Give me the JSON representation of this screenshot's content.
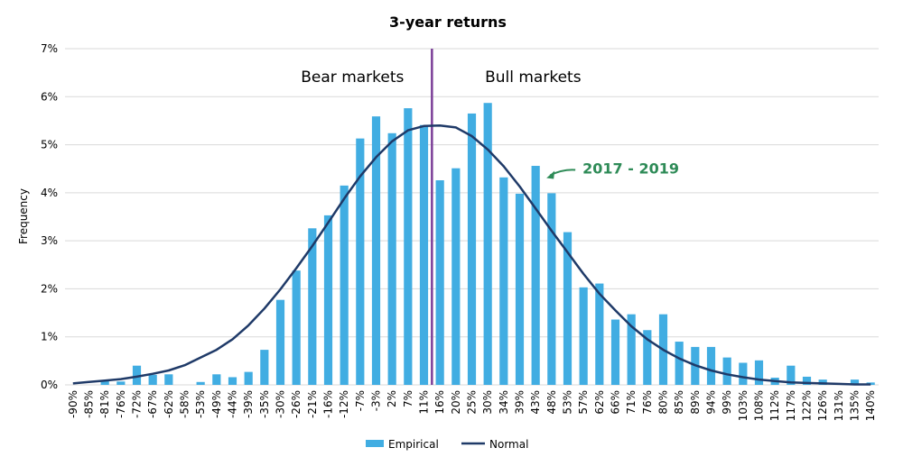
{
  "chart_data": {
    "type": "bar",
    "title": "3-year returns",
    "ylabel": "Frequency",
    "xlabel": "",
    "ylim": [
      0,
      7
    ],
    "yticks": [
      "0%",
      "1%",
      "2%",
      "3%",
      "4%",
      "5%",
      "6%",
      "7%"
    ],
    "grid": true,
    "legend_placement": "bottom",
    "categories": [
      "-90%",
      "-85%",
      "-81%",
      "-76%",
      "-72%",
      "-67%",
      "-62%",
      "-58%",
      "-53%",
      "-49%",
      "-44%",
      "-39%",
      "-35%",
      "-30%",
      "-26%",
      "-21%",
      "-16%",
      "-12%",
      "-7%",
      "-3%",
      "2%",
      "7%",
      "11%",
      "16%",
      "20%",
      "25%",
      "30%",
      "34%",
      "39%",
      "43%",
      "48%",
      "53%",
      "57%",
      "62%",
      "66%",
      "71%",
      "76%",
      "80%",
      "85%",
      "89%",
      "94%",
      "99%",
      "103%",
      "108%",
      "112%",
      "117%",
      "122%",
      "126%",
      "131%",
      "135%",
      "140%"
    ],
    "series": [
      {
        "name": "Empirical",
        "kind": "bar",
        "color": "#41ade2",
        "values": [
          0,
          0,
          0.08,
          0.07,
          0.4,
          0.21,
          0.22,
          0,
          0.06,
          0.22,
          0.16,
          0.27,
          0.73,
          1.77,
          2.38,
          3.26,
          3.53,
          4.15,
          5.13,
          5.59,
          5.24,
          5.76,
          5.41,
          4.26,
          4.51,
          5.65,
          5.87,
          4.32,
          3.98,
          4.56,
          3.99,
          3.18,
          2.03,
          2.11,
          1.36,
          1.47,
          1.14,
          1.47,
          0.9,
          0.79,
          0.79,
          0.57,
          0.46,
          0.51,
          0.15,
          0.4,
          0.17,
          0.11,
          0.03,
          0.11,
          0.05
        ]
      },
      {
        "name": "Normal",
        "kind": "line",
        "color": "#1f3a68",
        "values": [
          0.03,
          0.06,
          0.09,
          0.12,
          0.17,
          0.23,
          0.3,
          0.41,
          0.57,
          0.73,
          0.95,
          1.24,
          1.59,
          1.99,
          2.43,
          2.89,
          3.38,
          3.88,
          4.34,
          4.74,
          5.07,
          5.3,
          5.39,
          5.4,
          5.36,
          5.18,
          4.9,
          4.55,
          4.13,
          3.67,
          3.21,
          2.76,
          2.31,
          1.9,
          1.55,
          1.22,
          0.95,
          0.73,
          0.55,
          0.41,
          0.3,
          0.22,
          0.16,
          0.11,
          0.08,
          0.05,
          0.04,
          0.03,
          0.02,
          0.01,
          0.01
        ]
      }
    ],
    "divider_after_category": "11%",
    "divider_color": "#7b3f98",
    "regions": [
      {
        "label": "Bear markets",
        "side": "left"
      },
      {
        "label": "Bull markets",
        "side": "right"
      }
    ],
    "annotation": {
      "text": "2017 - 2019",
      "color": "#2e8b57",
      "category": "43%"
    }
  }
}
